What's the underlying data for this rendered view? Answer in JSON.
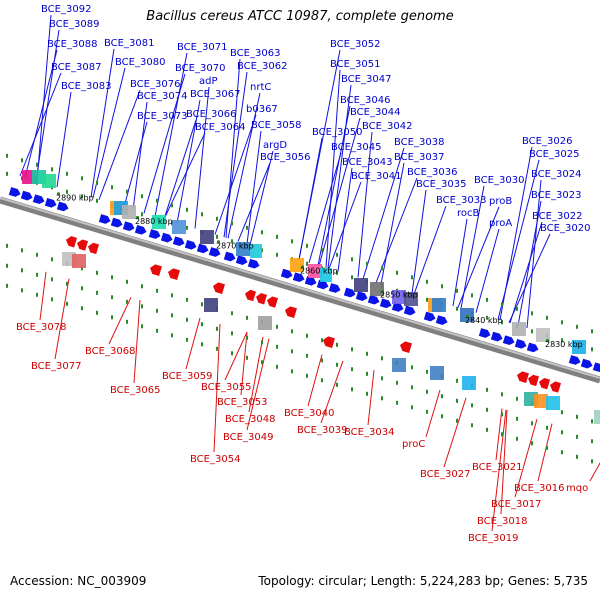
{
  "title": "Bacillus cereus ATCC 10987, complete genome",
  "footer": {
    "accession": "Accession: NC_003909",
    "summary": "Topology: circular; Length: 5,224,283 bp; Genes: 5,735"
  },
  "colors": {
    "forward_label": "#0000cc",
    "reverse_label": "#cc0000",
    "forward_gene": "#0a14e6",
    "reverse_gene": "#e60a0a",
    "axis": "#808080",
    "tick": "#2a8a2a"
  },
  "axis_ticks": [
    {
      "label": "2890 kbp"
    },
    {
      "label": "2880 kbp"
    },
    {
      "label": "2870 kbp"
    },
    {
      "label": "2860 kbp"
    },
    {
      "label": "2850 kbp"
    },
    {
      "label": "2840 kbp"
    },
    {
      "label": "2830 kbp"
    }
  ],
  "forward_genes": [
    "BCE_3092",
    "BCE_3089",
    "BCE_3088",
    "BCE_3087",
    "BCE_3083",
    "BCE_3081",
    "BCE_3080",
    "BCE_3076",
    "BCE_3074",
    "BCE_3073",
    "BCE_3071",
    "BCE_3070",
    "adP",
    "BCE_3067",
    "BCE_3066",
    "BCE_3064",
    "BCE_3063",
    "BCE_3062",
    "nrtC",
    "b0367",
    "BCE_3058",
    "argD",
    "BCE_3056",
    "BCE_3052",
    "BCE_3051",
    "BCE_3047",
    "BCE_3046",
    "BCE_3044",
    "BCE_3042",
    "BCE_3050",
    "BCE_3045",
    "BCE_3038",
    "BCE_3043",
    "BCE_3037",
    "BCE_3041",
    "BCE_3036",
    "BCE_3035",
    "BCE_3030",
    "BCE_3033",
    "proB",
    "rocB",
    "proA",
    "BCE_3026",
    "BCE_3025",
    "BCE_3024",
    "BCE_3023",
    "BCE_3022",
    "BCE_3020"
  ],
  "reverse_genes": [
    "BCE_3078",
    "BCE_3077",
    "BCE_3068",
    "BCE_3065",
    "BCE_3059",
    "BCE_3055",
    "BCE_3053",
    "BCE_3048",
    "BCE_3049",
    "BCE_3054",
    "BCE_3040",
    "BCE_3039",
    "BCE_3034",
    "proC",
    "BCE_3027",
    "BCE_3021",
    "BCE_3016",
    "BCE_3017",
    "BCE_3018",
    "BCE_3019",
    "mqo"
  ]
}
